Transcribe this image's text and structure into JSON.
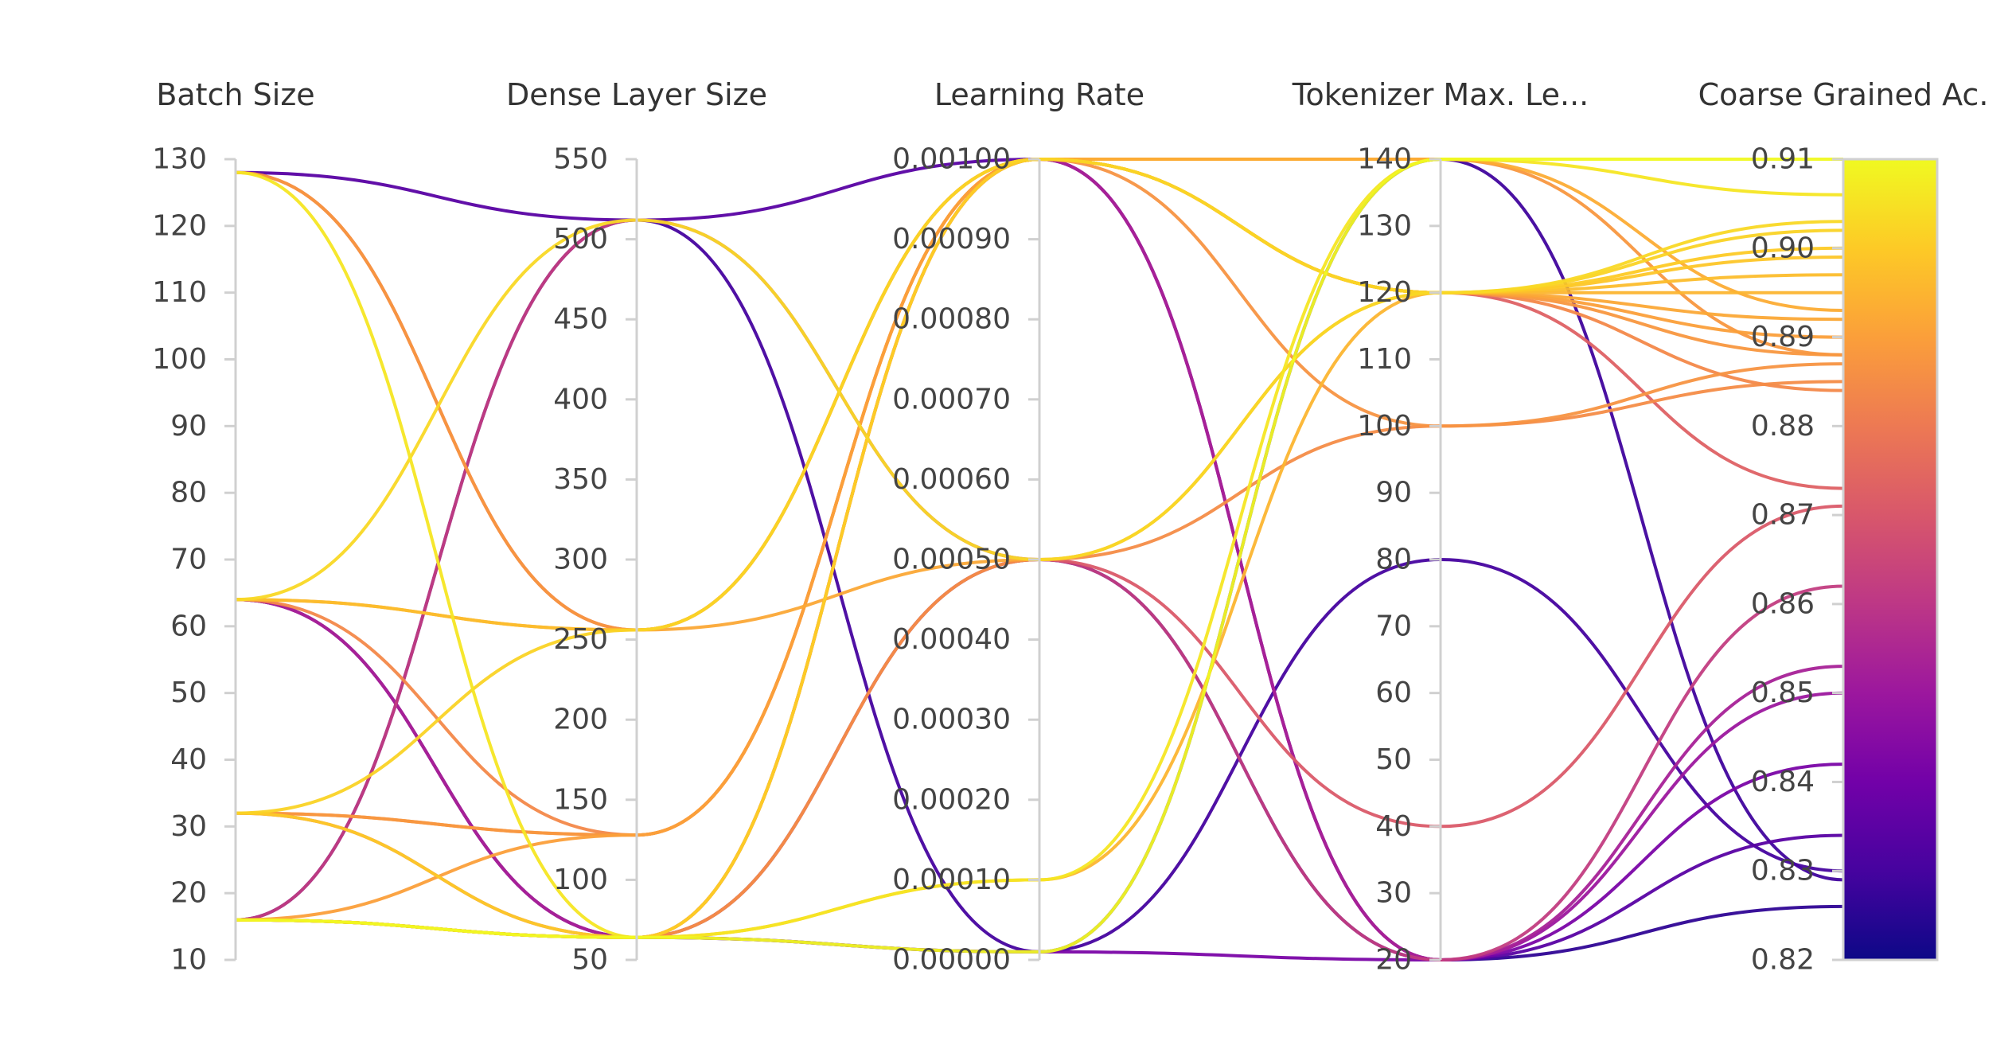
{
  "chart_data": {
    "type": "parallel_coordinates",
    "colorscale": "plasma",
    "colorscale_stops": [
      "#0d0887",
      "#46039f",
      "#7201a8",
      "#9c179e",
      "#bd3786",
      "#d8576b",
      "#ed7953",
      "#fb9f3a",
      "#fdca26",
      "#f0f921"
    ],
    "axes": [
      {
        "label": "Batch Size",
        "range": [
          10,
          130
        ],
        "ticks": [
          "130",
          "120",
          "110",
          "100",
          "90",
          "80",
          "70",
          "60",
          "50",
          "40",
          "30",
          "20",
          "10"
        ]
      },
      {
        "label": "Dense Layer Size",
        "range": [
          50,
          550
        ],
        "ticks": [
          "550",
          "500",
          "450",
          "400",
          "350",
          "300",
          "250",
          "200",
          "150",
          "100",
          "50"
        ]
      },
      {
        "label": "Learning Rate",
        "range": [
          0,
          0.001
        ],
        "ticks": [
          "0.00100",
          "0.00090",
          "0.00080",
          "0.00070",
          "0.00060",
          "0.00050",
          "0.00040",
          "0.00030",
          "0.00020",
          "0.00010",
          "0.00000"
        ]
      },
      {
        "label": "Tokenizer Max. Le...",
        "range": [
          20,
          140
        ],
        "ticks": [
          "140",
          "130",
          "120",
          "110",
          "100",
          "90",
          "80",
          "70",
          "60",
          "50",
          "40",
          "30",
          "20"
        ]
      },
      {
        "label": "Coarse Grained Ac.",
        "range": [
          0.82,
          0.91
        ],
        "ticks": [
          "0.91",
          "0.90",
          "0.89",
          "0.88",
          "0.87",
          "0.86",
          "0.85",
          "0.84",
          "0.83",
          "0.82"
        ]
      }
    ],
    "lines": [
      {
        "values": [
          128,
          512,
          0.001,
          20,
          0.834
        ]
      },
      {
        "values": [
          128,
          256,
          0.001,
          120,
          0.873
        ]
      },
      {
        "values": [
          128,
          64,
          0.0001,
          140,
          0.906
        ]
      },
      {
        "values": [
          64,
          512,
          0.0005,
          120,
          0.903
        ]
      },
      {
        "values": [
          64,
          256,
          0.0005,
          120,
          0.892
        ]
      },
      {
        "values": [
          64,
          128,
          0.001,
          120,
          0.884
        ]
      },
      {
        "values": [
          64,
          64,
          0.001,
          20,
          0.85
        ]
      },
      {
        "values": [
          64,
          64,
          0.001,
          20,
          0.853
        ]
      },
      {
        "values": [
          64,
          64,
          1e-05,
          140,
          0.829
        ]
      },
      {
        "values": [
          32,
          256,
          0.001,
          120,
          0.902
        ]
      },
      {
        "values": [
          32,
          128,
          0.001,
          100,
          0.887
        ]
      },
      {
        "values": [
          32,
          128,
          0.001,
          120,
          0.888
        ]
      },
      {
        "values": [
          32,
          64,
          0.0005,
          40,
          0.871
        ]
      },
      {
        "values": [
          16,
          512,
          0.0005,
          20,
          0.862
        ]
      },
      {
        "values": [
          16,
          512,
          1e-05,
          80,
          0.83
        ]
      },
      {
        "values": [
          16,
          128,
          0.001,
          120,
          0.89
        ]
      },
      {
        "values": [
          16,
          64,
          0.0005,
          100,
          0.885
        ]
      },
      {
        "values": [
          16,
          64,
          0.001,
          120,
          0.899
        ]
      },
      {
        "values": [
          16,
          64,
          0.0001,
          120,
          0.895
        ]
      },
      {
        "values": [
          16,
          64,
          1e-05,
          20,
          0.842
        ]
      },
      {
        "values": [
          16,
          64,
          1e-05,
          140,
          0.91
        ]
      },
      {
        "values": [
          16,
          64,
          0.0005,
          20,
          0.826
        ]
      },
      {
        "values": [
          16,
          64,
          0.001,
          140,
          0.893
        ]
      },
      {
        "values": [
          64,
          256,
          0.001,
          120,
          0.897
        ]
      },
      {
        "values": [
          128,
          256,
          0.001,
          140,
          0.888
        ]
      },
      {
        "values": [
          32,
          64,
          0.001,
          120,
          0.9
        ]
      }
    ]
  }
}
